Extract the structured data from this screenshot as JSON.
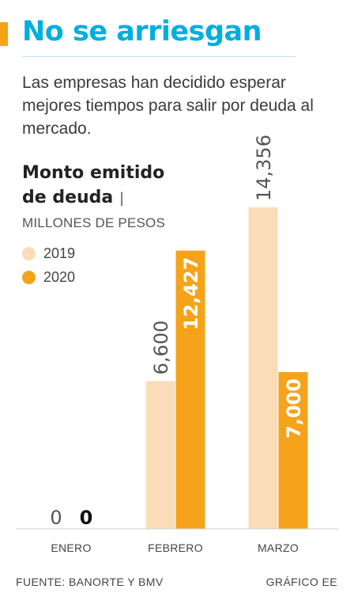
{
  "header": {
    "title": "No se arriesgan",
    "subtitle": "Las empresas han decidido esperar mejores tiempos para salir por deuda al mercado."
  },
  "chart_data": {
    "type": "bar",
    "title_line1": "Monto emitido",
    "title_line2": "de deuda",
    "title_separator": "|",
    "units": "MILLONES DE PESOS",
    "categories": [
      "ENERO",
      "FEBRERO",
      "MARZO"
    ],
    "series": [
      {
        "name": "2019",
        "values": [
          0,
          6600,
          14356
        ],
        "labels": [
          "0",
          "6,600",
          "14,356"
        ],
        "color": "#fbdcb8"
      },
      {
        "name": "2020",
        "values": [
          0,
          12427,
          7000
        ],
        "labels": [
          "0",
          "12,427",
          "7,000"
        ],
        "color": "#f5a31a"
      }
    ],
    "ylim": [
      0,
      14356
    ],
    "grid": false,
    "legend_position": "top-left"
  },
  "footer": {
    "source": "FUENTE: BANORTE Y BMV",
    "credit": "GRÁFICO EE"
  },
  "colors": {
    "title": "#00aee0",
    "accent": "#f5a31a",
    "series_2019": "#fbdcb8",
    "series_2020": "#f5a31a",
    "label_2020_on_bar": "#ffffff",
    "label_2020_outside": "#111111"
  }
}
